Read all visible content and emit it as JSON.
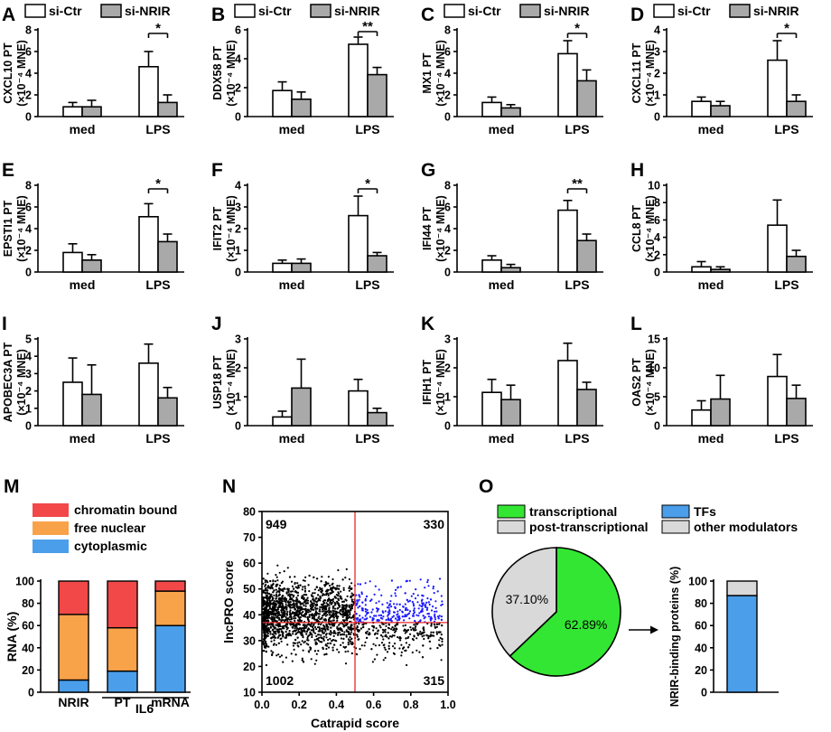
{
  "legend": {
    "ctr": "si-Ctr",
    "nrir": "si-NRIR",
    "ctr_color": "#ffffff",
    "nrir_color": "#a9a9a9"
  },
  "bar_panels": [
    {
      "label": "A",
      "ylabel": "CXCL10 PT",
      "unit": "(×10⁻⁴ MNE)",
      "ymax": 8,
      "yticks": [
        0,
        2,
        4,
        6,
        8
      ],
      "categories": [
        "med",
        "LPS"
      ],
      "ctr": [
        0.9,
        4.6
      ],
      "ctr_err": [
        0.4,
        1.4
      ],
      "nrir": [
        0.9,
        1.3
      ],
      "nrir_err": [
        0.6,
        0.7
      ],
      "sig": "*"
    },
    {
      "label": "B",
      "ylabel": "DDX58 PT",
      "unit": "(×10⁻⁴ MNE)",
      "ymax": 6,
      "yticks": [
        0,
        2,
        4,
        6
      ],
      "categories": [
        "med",
        "LPS"
      ],
      "ctr": [
        1.8,
        5.0
      ],
      "ctr_err": [
        0.6,
        0.5
      ],
      "nrir": [
        1.2,
        2.9
      ],
      "nrir_err": [
        0.5,
        0.5
      ],
      "sig": "**"
    },
    {
      "label": "C",
      "ylabel": "MX1 PT",
      "unit": "(×10⁻⁴ MNE)",
      "ymax": 8,
      "yticks": [
        0,
        2,
        4,
        6,
        8
      ],
      "categories": [
        "med",
        "LPS"
      ],
      "ctr": [
        1.3,
        5.8
      ],
      "ctr_err": [
        0.5,
        1.2
      ],
      "nrir": [
        0.8,
        3.3
      ],
      "nrir_err": [
        0.3,
        1.0
      ],
      "sig": "*"
    },
    {
      "label": "D",
      "ylabel": "CXCL11 PT",
      "unit": "(×10⁻⁴ MNE)",
      "ymax": 4,
      "yticks": [
        0,
        1,
        2,
        3,
        4
      ],
      "categories": [
        "med",
        "LPS"
      ],
      "ctr": [
        0.7,
        2.6
      ],
      "ctr_err": [
        0.2,
        0.9
      ],
      "nrir": [
        0.5,
        0.7
      ],
      "nrir_err": [
        0.2,
        0.3
      ],
      "sig": "*"
    },
    {
      "label": "E",
      "ylabel": "EPSTI1 PT",
      "unit": "(×10⁻⁴ MNE)",
      "ymax": 8,
      "yticks": [
        0,
        2,
        4,
        6,
        8
      ],
      "categories": [
        "med",
        "LPS"
      ],
      "ctr": [
        1.8,
        5.1
      ],
      "ctr_err": [
        0.8,
        1.2
      ],
      "nrir": [
        1.1,
        2.8
      ],
      "nrir_err": [
        0.5,
        0.7
      ],
      "sig": "*"
    },
    {
      "label": "F",
      "ylabel": "IFIT2 PT",
      "unit": "(×10⁻⁴ MNE)",
      "ymax": 4,
      "yticks": [
        0,
        1,
        2,
        3,
        4
      ],
      "categories": [
        "med",
        "LPS"
      ],
      "ctr": [
        0.4,
        2.6
      ],
      "ctr_err": [
        0.15,
        0.9
      ],
      "nrir": [
        0.4,
        0.75
      ],
      "nrir_err": [
        0.2,
        0.15
      ],
      "sig": "*"
    },
    {
      "label": "G",
      "ylabel": "IFI44 PT",
      "unit": "(×10⁻⁴ MNE)",
      "ymax": 8,
      "yticks": [
        0,
        2,
        4,
        6,
        8
      ],
      "categories": [
        "med",
        "LPS"
      ],
      "ctr": [
        1.1,
        5.7
      ],
      "ctr_err": [
        0.4,
        0.9
      ],
      "nrir": [
        0.4,
        2.9
      ],
      "nrir_err": [
        0.3,
        0.6
      ],
      "sig": "**"
    },
    {
      "label": "H",
      "ylabel": "CCL8 PT",
      "unit": "(×10⁻⁴ MNE)",
      "ymax": 10,
      "yticks": [
        0,
        2,
        4,
        6,
        8,
        10
      ],
      "categories": [
        "med",
        "LPS"
      ],
      "ctr": [
        0.6,
        5.4
      ],
      "ctr_err": [
        0.6,
        2.9
      ],
      "nrir": [
        0.3,
        1.8
      ],
      "nrir_err": [
        0.3,
        0.7
      ],
      "sig": ""
    },
    {
      "label": "I",
      "ylabel": "APOBEC3A PT",
      "unit": "(×10⁻⁴ MNE)",
      "ymax": 5,
      "yticks": [
        0,
        1,
        2,
        3,
        4,
        5
      ],
      "categories": [
        "med",
        "LPS"
      ],
      "ctr": [
        2.5,
        3.6
      ],
      "ctr_err": [
        1.4,
        1.1
      ],
      "nrir": [
        1.8,
        1.6
      ],
      "nrir_err": [
        1.7,
        0.6
      ],
      "sig": ""
    },
    {
      "label": "J",
      "ylabel": "USP18 PT",
      "unit": "(×10⁻⁴ MNE)",
      "ymax": 3,
      "yticks": [
        0,
        1,
        2,
        3
      ],
      "categories": [
        "med",
        "LPS"
      ],
      "ctr": [
        0.3,
        1.2
      ],
      "ctr_err": [
        0.2,
        0.4
      ],
      "nrir": [
        1.3,
        0.45
      ],
      "nrir_err": [
        1.0,
        0.15
      ],
      "sig": ""
    },
    {
      "label": "K",
      "ylabel": "IFIH1 PT",
      "unit": "(×10⁻⁴ MNE)",
      "ymax": 3,
      "yticks": [
        0,
        1,
        2,
        3
      ],
      "categories": [
        "med",
        "LPS"
      ],
      "ctr": [
        1.15,
        2.25
      ],
      "ctr_err": [
        0.45,
        0.6
      ],
      "nrir": [
        0.9,
        1.25
      ],
      "nrir_err": [
        0.5,
        0.25
      ],
      "sig": ""
    },
    {
      "label": "L",
      "ylabel": "OAS2 PT",
      "unit": "(×10⁻⁴ MNE)",
      "ymax": 15,
      "yticks": [
        0,
        5,
        10,
        15
      ],
      "categories": [
        "med",
        "LPS"
      ],
      "ctr": [
        2.7,
        8.5
      ],
      "ctr_err": [
        1.6,
        3.8
      ],
      "nrir": [
        4.6,
        4.7
      ],
      "nrir_err": [
        4.1,
        2.3
      ],
      "sig": ""
    }
  ],
  "panel_m": {
    "label": "M",
    "ylabel": "RNA (%)",
    "yticks": [
      0,
      20,
      40,
      60,
      80,
      100
    ],
    "categories": [
      "NRIR",
      "PT",
      "mRNA"
    ],
    "group_label": "IL6",
    "series": [
      {
        "name": "cytoplasmic",
        "color": "#4a9eea",
        "values": [
          11,
          19,
          60
        ]
      },
      {
        "name": "free nuclear",
        "color": "#f8a24a",
        "values": [
          59,
          39,
          31
        ]
      },
      {
        "name": "chromatin bound",
        "color": "#f24848",
        "values": [
          30,
          42,
          9
        ]
      }
    ]
  },
  "panel_n": {
    "label": "N",
    "xlabel": "Catrapid score",
    "ylabel": "lncPRO score",
    "xlim": [
      0.0,
      1.0
    ],
    "ylim": [
      10,
      80
    ],
    "xticks": [
      "0.0",
      "0.2",
      "0.4",
      "0.6",
      "0.8",
      "1.0"
    ],
    "yticks": [
      "10",
      "20",
      "30",
      "40",
      "50",
      "60",
      "70",
      "80"
    ],
    "x_threshold": 0.5,
    "y_threshold": 37,
    "quadrant_counts": {
      "top_left": "949",
      "top_right": "330",
      "bottom_left": "1002",
      "bottom_right": "315"
    },
    "line_color": "#e8262a",
    "highlight_color": "#1a1aff",
    "base_color": "#000000"
  },
  "panel_o": {
    "label": "O",
    "pie": [
      {
        "name": "transcriptional",
        "pct": 62.89,
        "text": "62.89%",
        "color": "#33e633"
      },
      {
        "name": "post-transcriptional",
        "pct": 37.1,
        "text": "37.10%",
        "color": "#d9d9d9"
      }
    ],
    "bar_legend": [
      {
        "name": "TFs",
        "color": "#4a9eea"
      },
      {
        "name": "other modulators",
        "color": "#d9d9d9"
      }
    ],
    "bar_ylabel": "NRIR-binding proteins (%)",
    "bar_yticks": [
      0,
      20,
      40,
      60,
      80,
      100
    ],
    "bar_values": {
      "TFs": 87,
      "other modulators": 13
    }
  }
}
